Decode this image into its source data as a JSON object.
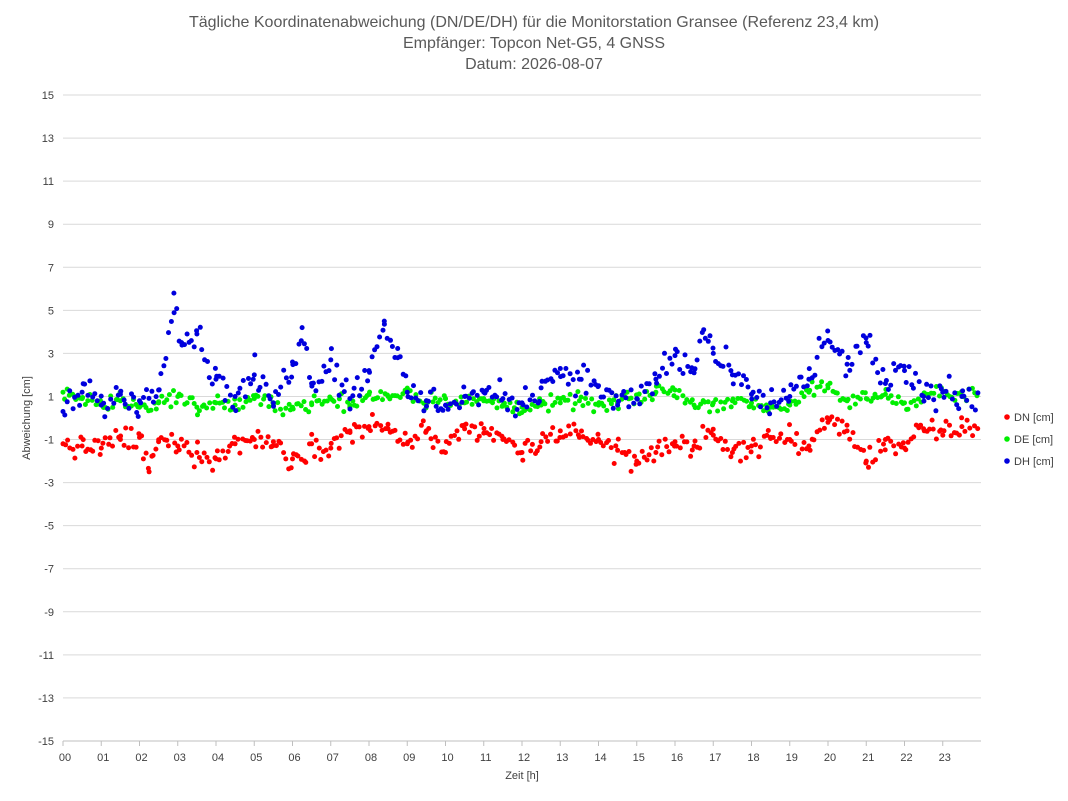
{
  "chart_data": {
    "type": "scatter",
    "title": [
      "Tägliche Koordinatenabweichung (DN/DE/DH) für die Monitorstation Gransee (Referenz 23,4 km)",
      "Empfänger: Topcon Net-G5, 4 GNSS",
      "Datum: 2026-08-07"
    ],
    "xlabel": "Zeit [h]",
    "ylabel": "Abweichung [cm]",
    "xlim": [
      0,
      24
    ],
    "ylim": [
      -15,
      15
    ],
    "yticks": [
      -15,
      -13,
      -11,
      -9,
      -7,
      -5,
      -3,
      -1,
      1,
      3,
      5,
      7,
      9,
      11,
      13,
      15
    ],
    "xticks": [
      "00",
      "01",
      "02",
      "03",
      "04",
      "05",
      "06",
      "07",
      "08",
      "09",
      "10",
      "11",
      "12",
      "13",
      "14",
      "15",
      "16",
      "17",
      "18",
      "19",
      "20",
      "21",
      "22",
      "23"
    ],
    "grid": "horizontal",
    "legend_position": "right",
    "series": [
      {
        "name": "DN [cm]",
        "color": "#ff0000",
        "x": [
          0,
          0.5,
          1,
          1.5,
          2,
          2.25,
          2.5,
          3,
          3.5,
          4,
          4.5,
          5,
          5.5,
          6,
          6.5,
          7,
          7.5,
          8,
          8.5,
          9,
          9.5,
          10,
          10.5,
          11,
          11.5,
          12,
          12.5,
          13,
          13.5,
          14,
          14.5,
          15,
          15.5,
          16,
          16.5,
          17,
          17.5,
          18,
          18.5,
          19,
          19.5,
          20,
          20.5,
          21,
          21.5,
          22,
          22.5,
          23,
          23.5
        ],
        "y": [
          -1.2,
          -1.3,
          -1.4,
          -1.0,
          -0.9,
          -2.5,
          -1.1,
          -1.3,
          -1.6,
          -1.9,
          -1.2,
          -1.0,
          -1.1,
          -1.9,
          -1.2,
          -1.4,
          -0.6,
          -0.4,
          -0.5,
          -1.2,
          -0.6,
          -1.6,
          -0.5,
          -0.7,
          -1.0,
          -1.6,
          -1.1,
          -0.6,
          -0.9,
          -1.0,
          -1.5,
          -2.0,
          -1.6,
          -1.1,
          -1.3,
          -0.8,
          -1.6,
          -1.3,
          -0.9,
          -1.0,
          -1.3,
          -0.2,
          -0.6,
          -2.0,
          -1.0,
          -1.4,
          -0.5,
          -0.8,
          -0.4
        ]
      },
      {
        "name": "DE [cm]",
        "color": "#00ee00",
        "x": [
          0,
          0.5,
          1,
          1.5,
          2,
          2.5,
          3,
          3.5,
          4,
          4.5,
          5,
          5.5,
          6,
          6.5,
          7,
          7.5,
          8,
          8.5,
          9,
          9.5,
          10,
          10.5,
          11,
          11.5,
          12,
          12.5,
          13,
          13.5,
          14,
          14.5,
          15,
          15.5,
          16,
          16.5,
          17,
          17.5,
          18,
          18.5,
          19,
          19.5,
          20,
          20.5,
          21,
          21.5,
          22,
          22.5,
          23,
          23.5
        ],
        "y": [
          1.2,
          0.9,
          0.6,
          0.8,
          0.5,
          0.7,
          1.0,
          0.5,
          0.7,
          0.6,
          0.9,
          0.6,
          0.5,
          0.7,
          0.9,
          0.6,
          1.1,
          1.0,
          1.2,
          0.8,
          0.9,
          0.7,
          0.8,
          0.6,
          0.5,
          0.6,
          0.7,
          0.8,
          0.6,
          0.7,
          0.9,
          1.2,
          1.3,
          0.6,
          0.7,
          0.8,
          0.7,
          0.5,
          0.6,
          1.2,
          1.4,
          0.8,
          0.9,
          1.1,
          0.7,
          1.0,
          1.2,
          1.0
        ]
      },
      {
        "name": "DH [cm]",
        "color": "#0000dd",
        "x": [
          0,
          0.5,
          1,
          1.5,
          2,
          2.5,
          2.9,
          3.1,
          3.5,
          4,
          4.5,
          5,
          5.5,
          6,
          6.25,
          6.5,
          7,
          7.5,
          8,
          8.4,
          8.75,
          9,
          9.5,
          10,
          10.5,
          11,
          11.5,
          12,
          12.5,
          13,
          13.5,
          14,
          14.5,
          15,
          15.5,
          16,
          16.5,
          16.75,
          17,
          17.5,
          18,
          18.5,
          19,
          19.5,
          20,
          20.5,
          21,
          21.5,
          22,
          22.5,
          23,
          23.5
        ],
        "y": [
          0.3,
          1.2,
          0.6,
          1.1,
          0.8,
          1.3,
          5.8,
          3.5,
          3.9,
          1.8,
          1.0,
          2.0,
          0.7,
          2.6,
          4.2,
          1.6,
          2.7,
          0.9,
          2.2,
          4.5,
          2.8,
          1.2,
          0.8,
          0.6,
          1.0,
          1.2,
          0.9,
          0.7,
          1.4,
          2.3,
          1.8,
          1.5,
          0.6,
          0.9,
          1.8,
          2.9,
          2.1,
          4.1,
          3.0,
          2.0,
          1.1,
          0.7,
          1.0,
          1.8,
          3.6,
          2.5,
          3.5,
          1.6,
          2.2,
          1.0,
          1.2,
          1.0
        ]
      }
    ]
  }
}
